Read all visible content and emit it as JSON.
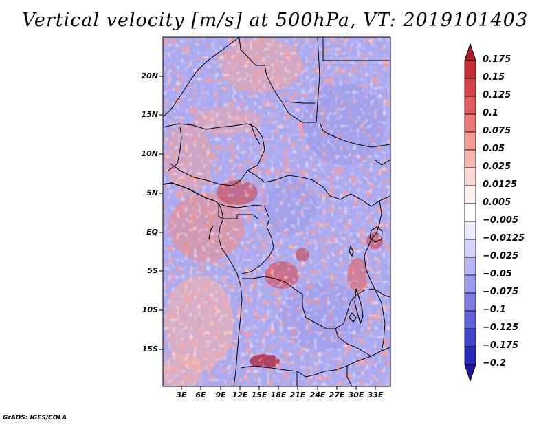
{
  "title": "Vertical velocity [m/s] at 500hPa, VT: 2019101403",
  "credit": "GrADS: IGES/COLA",
  "map": {
    "lat_labels": [
      "20N",
      "15N",
      "10N",
      "5N",
      "EQ",
      "5S",
      "10S",
      "15S"
    ],
    "lon_labels": [
      "3E",
      "6E",
      "9E",
      "12E",
      "15E",
      "18E",
      "21E",
      "24E",
      "27E",
      "30E",
      "33E"
    ]
  },
  "colorbar": {
    "labels": [
      "0.175",
      "0.15",
      "0.125",
      "0.1",
      "0.075",
      "0.05",
      "0.025",
      "0.0125",
      "0.005",
      "−0.005",
      "−0.0125",
      "−0.025",
      "−0.05",
      "−0.075",
      "−0.1",
      "−0.125",
      "−0.175",
      "−0.2"
    ],
    "colors": [
      "#b2182b",
      "#c62d34",
      "#d6444a",
      "#e05c5e",
      "#ea7a78",
      "#f19a96",
      "#f7b8b4",
      "#fcd8d4",
      "#fff0ee",
      "#ffffff",
      "#ececff",
      "#d2d2fa",
      "#b6b6f4",
      "#9a9aee",
      "#7e7ee6",
      "#6262dc",
      "#4444cc",
      "#2a2ab8",
      "#1a1a9c"
    ]
  }
}
